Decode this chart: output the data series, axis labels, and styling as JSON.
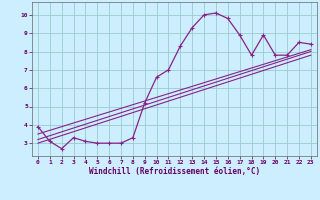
{
  "title": "",
  "xlabel": "Windchill (Refroidissement éolien,°C)",
  "ylabel": "",
  "bg_color": "#cceeff",
  "line_color": "#882288",
  "grid_color": "#99cccc",
  "xlim": [
    -0.5,
    23.5
  ],
  "ylim": [
    2.3,
    10.7
  ],
  "xticks": [
    0,
    1,
    2,
    3,
    4,
    5,
    6,
    7,
    8,
    9,
    10,
    11,
    12,
    13,
    14,
    15,
    16,
    17,
    18,
    19,
    20,
    21,
    22,
    23
  ],
  "yticks": [
    3,
    4,
    5,
    6,
    7,
    8,
    9,
    10
  ],
  "main_x": [
    0,
    1,
    2,
    3,
    4,
    5,
    6,
    7,
    8,
    9,
    10,
    11,
    12,
    13,
    14,
    15,
    16,
    17,
    18,
    19,
    20,
    21,
    22,
    23
  ],
  "main_y": [
    3.9,
    3.1,
    2.7,
    3.3,
    3.1,
    3.0,
    3.0,
    3.0,
    3.3,
    5.2,
    6.6,
    7.0,
    8.3,
    9.3,
    10.0,
    10.1,
    9.8,
    8.9,
    7.8,
    8.9,
    7.8,
    7.8,
    8.5,
    8.4
  ],
  "trend1_x": [
    0,
    23
  ],
  "trend1_y": [
    3.5,
    8.1
  ],
  "trend2_x": [
    0,
    23
  ],
  "trend2_y": [
    3.2,
    8.0
  ],
  "trend3_x": [
    0,
    23
  ],
  "trend3_y": [
    3.0,
    7.8
  ]
}
